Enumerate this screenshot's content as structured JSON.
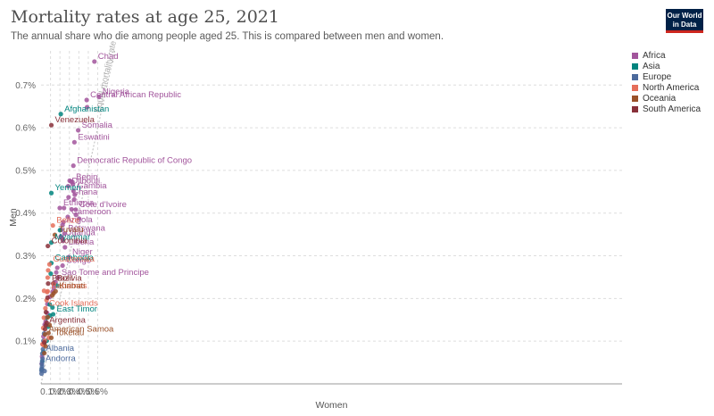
{
  "header": {
    "title": "Mortality rates at age 25, 2021",
    "subtitle": "The annual share who die among people aged 25. This is compared between men and women.",
    "logo_line1": "Our World",
    "logo_line2": "in Data"
  },
  "colors": {
    "Africa": "#a2559c",
    "Asia": "#00847e",
    "Europe": "#4c6a9c",
    "North America": "#e56e5a",
    "Oceania": "#9a5129",
    "South America": "#883039"
  },
  "chart_data": {
    "type": "scatter",
    "title": "Mortality rates at age 25, 2021",
    "xlabel": "Women",
    "ylabel": "Men",
    "xlim": [
      0,
      0.0615
    ],
    "ylim": [
      0,
      0.0078
    ],
    "x_ticks": [
      "0.1%",
      "0.2%",
      "0.3%",
      "0.4%",
      "0.5%",
      "0.6%"
    ],
    "y_ticks": [
      "0.1%",
      "0.2%",
      "0.3%",
      "0.4%",
      "0.5%",
      "0.6%",
      "0.7%"
    ],
    "x_tick_values": [
      0.001,
      0.002,
      0.003,
      0.004,
      0.005,
      0.006
    ],
    "y_tick_values": [
      0.001,
      0.002,
      0.003,
      0.004,
      0.005,
      0.006,
      0.007
    ],
    "grid": true,
    "legend_position": "right",
    "reference_line": {
      "label": "Equal mortality rate"
    },
    "legend": [
      "Africa",
      "Asia",
      "Europe",
      "North America",
      "Oceania",
      "South America"
    ],
    "points": [
      {
        "label": "Chad",
        "x": 0.00565,
        "y": 0.00755,
        "region": "Africa"
      },
      {
        "label": "Nigeria",
        "x": 0.00613,
        "y": 0.00672,
        "region": "Africa"
      },
      {
        "label": "Central African Republic",
        "x": 0.00483,
        "y": 0.00665,
        "region": "Africa"
      },
      {
        "label": "",
        "x": 0.00487,
        "y": 0.00648,
        "region": "Africa"
      },
      {
        "label": "Somalia",
        "x": 0.00393,
        "y": 0.00594,
        "region": "Africa"
      },
      {
        "label": "Eswatini",
        "x": 0.00353,
        "y": 0.00566,
        "region": "Africa"
      },
      {
        "label": "Democratic Republic of Congo",
        "x": 0.00342,
        "y": 0.00511,
        "region": "Africa"
      },
      {
        "label": "Djibouti",
        "x": 0.00287,
        "y": 0.00463,
        "region": "Africa"
      },
      {
        "label": "",
        "x": 0.00303,
        "y": 0.00476,
        "region": "Africa"
      },
      {
        "label": "",
        "x": 0.00318,
        "y": 0.00474,
        "region": "Africa"
      },
      {
        "label": "Benin",
        "x": 0.00332,
        "y": 0.00473,
        "region": "Africa"
      },
      {
        "label": "Ghana",
        "x": 0.00291,
        "y": 0.00437,
        "region": "Africa"
      },
      {
        "label": "",
        "x": 0.00337,
        "y": 0.00467,
        "region": "Africa"
      },
      {
        "label": "Gambia",
        "x": 0.00343,
        "y": 0.00452,
        "region": "Africa"
      },
      {
        "label": "",
        "x": 0.00351,
        "y": 0.00432,
        "region": "Africa"
      },
      {
        "label": "",
        "x": 0.00357,
        "y": 0.00443,
        "region": "Africa"
      },
      {
        "label": "Cote d'Ivoire",
        "x": 0.00367,
        "y": 0.00408,
        "region": "Africa"
      },
      {
        "label": "",
        "x": 0.00369,
        "y": 0.00396,
        "region": "Africa"
      },
      {
        "label": "",
        "x": 0.00403,
        "y": 0.00387,
        "region": "Africa"
      },
      {
        "label": "Cameroon",
        "x": 0.00283,
        "y": 0.00391,
        "region": "Africa"
      },
      {
        "label": "",
        "x": 0.00323,
        "y": 0.00409,
        "region": "Africa"
      },
      {
        "label": "Ethiopia",
        "x": 0.00198,
        "y": 0.00412,
        "region": "Africa"
      },
      {
        "label": "",
        "x": 0.00243,
        "y": 0.00412,
        "region": "Africa"
      },
      {
        "label": "Angola",
        "x": 0.00228,
        "y": 0.00372,
        "region": "Africa"
      },
      {
        "label": "",
        "x": 0.00237,
        "y": 0.00379,
        "region": "Africa"
      },
      {
        "label": "",
        "x": 0.00216,
        "y": 0.00361,
        "region": "Africa"
      },
      {
        "label": "Botswana",
        "x": 0.00248,
        "y": 0.00352,
        "region": "Africa"
      },
      {
        "label": "Uganda",
        "x": 0.00222,
        "y": 0.00342,
        "region": "Africa"
      },
      {
        "label": "",
        "x": 0.00208,
        "y": 0.00345,
        "region": "Africa"
      },
      {
        "label": "",
        "x": 0.00233,
        "y": 0.00335,
        "region": "Africa"
      },
      {
        "label": "Liberia",
        "x": 0.00253,
        "y": 0.0032,
        "region": "Africa"
      },
      {
        "label": "Niger",
        "x": 0.00293,
        "y": 0.00297,
        "region": "Africa"
      },
      {
        "label": "Congo",
        "x": 0.00228,
        "y": 0.00277,
        "region": "Africa"
      },
      {
        "label": "Sao Tome and Principe",
        "x": 0.00178,
        "y": 0.00249,
        "region": "Africa"
      },
      {
        "label": "",
        "x": 0.00172,
        "y": 0.00272,
        "region": "Africa"
      },
      {
        "label": "",
        "x": 0.00161,
        "y": 0.00261,
        "region": "Africa"
      },
      {
        "label": "",
        "x": 0.00153,
        "y": 0.00238,
        "region": "Africa"
      },
      {
        "label": "",
        "x": 0.00134,
        "y": 0.00225,
        "region": "Africa"
      },
      {
        "label": "",
        "x": 0.00122,
        "y": 0.00216,
        "region": "Africa"
      },
      {
        "label": "",
        "x": 0.00094,
        "y": 0.00204,
        "region": "Africa"
      },
      {
        "label": "",
        "x": 0.00067,
        "y": 0.00187,
        "region": "Africa"
      },
      {
        "label": "",
        "x": 0.00064,
        "y": 0.00166,
        "region": "Africa"
      },
      {
        "label": "",
        "x": 0.00049,
        "y": 0.00146,
        "region": "Africa"
      },
      {
        "label": "",
        "x": 0.00038,
        "y": 0.00139,
        "region": "Africa"
      },
      {
        "label": "",
        "x": 0.00025,
        "y": 0.00111,
        "region": "Africa"
      },
      {
        "label": "",
        "x": 0.00019,
        "y": 0.00092,
        "region": "Africa"
      },
      {
        "label": "",
        "x": 0.00011,
        "y": 0.00064,
        "region": "Africa"
      },
      {
        "label": "",
        "x": 7e-05,
        "y": 0.00047,
        "region": "Africa"
      },
      {
        "label": "Afghanistan",
        "x": 0.00209,
        "y": 0.00632,
        "region": "Asia"
      },
      {
        "label": "Yemen",
        "x": 0.00109,
        "y": 0.00447,
        "region": "Asia"
      },
      {
        "label": "Myanmar",
        "x": 0.00109,
        "y": 0.00331,
        "region": "Asia"
      },
      {
        "label": "Cambodia",
        "x": 0.00109,
        "y": 0.00283,
        "region": "Asia"
      },
      {
        "label": "",
        "x": 0.002,
        "y": 0.0036,
        "region": "Asia"
      },
      {
        "label": "",
        "x": 0.00171,
        "y": 0.0023,
        "region": "Asia"
      },
      {
        "label": "",
        "x": 0.00103,
        "y": 0.00258,
        "region": "Asia"
      },
      {
        "label": "East Timor",
        "x": 0.00128,
        "y": 0.00163,
        "region": "Asia"
      },
      {
        "label": "",
        "x": 0.00121,
        "y": 0.00179,
        "region": "Asia"
      },
      {
        "label": "",
        "x": 0.00092,
        "y": 0.00186,
        "region": "Asia"
      },
      {
        "label": "",
        "x": 0.00094,
        "y": 0.0016,
        "region": "Asia"
      },
      {
        "label": "",
        "x": 0.00058,
        "y": 0.00155,
        "region": "Asia"
      },
      {
        "label": "",
        "x": 0.00075,
        "y": 0.00134,
        "region": "Asia"
      },
      {
        "label": "",
        "x": 0.0006,
        "y": 0.00101,
        "region": "Asia"
      },
      {
        "label": "",
        "x": 0.00034,
        "y": 0.00095,
        "region": "Asia"
      },
      {
        "label": "",
        "x": 0.00025,
        "y": 0.00075,
        "region": "Asia"
      },
      {
        "label": "",
        "x": 0.00014,
        "y": 0.00053,
        "region": "Asia"
      },
      {
        "label": "",
        "x": 8e-05,
        "y": 0.00034,
        "region": "Asia"
      },
      {
        "label": "Albania",
        "x": 0.00013,
        "y": 0.00071,
        "region": "Europe"
      },
      {
        "label": "Andorra",
        "x": 9e-05,
        "y": 0.00047,
        "region": "Europe"
      },
      {
        "label": "",
        "x": 4e-05,
        "y": 0.00031,
        "region": "Europe"
      },
      {
        "label": "",
        "x": 7e-05,
        "y": 0.00036,
        "region": "Europe"
      },
      {
        "label": "",
        "x": 0.00011,
        "y": 0.00041,
        "region": "Europe"
      },
      {
        "label": "",
        "x": 0.00012,
        "y": 0.00053,
        "region": "Europe"
      },
      {
        "label": "",
        "x": 0.00016,
        "y": 0.00059,
        "region": "Europe"
      },
      {
        "label": "",
        "x": 0.0002,
        "y": 0.00081,
        "region": "Europe"
      },
      {
        "label": "",
        "x": 0.00025,
        "y": 0.00101,
        "region": "Europe"
      },
      {
        "label": "",
        "x": 0.00032,
        "y": 0.00118,
        "region": "Europe"
      },
      {
        "label": "",
        "x": 0.00038,
        "y": 0.0003,
        "region": "Europe"
      },
      {
        "label": "",
        "x": 5e-05,
        "y": 0.00024,
        "region": "Europe"
      },
      {
        "label": "Belize",
        "x": 0.00125,
        "y": 0.00371,
        "region": "North America"
      },
      {
        "label": "Guatemala",
        "x": 0.00089,
        "y": 0.0028,
        "region": "North America"
      },
      {
        "label": "Bahamas",
        "x": 0.0007,
        "y": 0.00217,
        "region": "North America"
      },
      {
        "label": "Cook Islands",
        "x": 0.00046,
        "y": 0.00177,
        "region": "North America"
      },
      {
        "label": "",
        "x": 0.00075,
        "y": 0.00266,
        "region": "North America"
      },
      {
        "label": "",
        "x": 0.0007,
        "y": 0.00249,
        "region": "North America"
      },
      {
        "label": "",
        "x": 0.00064,
        "y": 0.00215,
        "region": "North America"
      },
      {
        "label": "",
        "x": 0.00058,
        "y": 0.00196,
        "region": "North America"
      },
      {
        "label": "",
        "x": 0.00032,
        "y": 0.00218,
        "region": "North America"
      },
      {
        "label": "",
        "x": 0.0003,
        "y": 0.00155,
        "region": "North America"
      },
      {
        "label": "",
        "x": 0.00023,
        "y": 0.00131,
        "region": "North America"
      },
      {
        "label": "",
        "x": 0.00039,
        "y": 0.00101,
        "region": "North America"
      },
      {
        "label": "",
        "x": 0.00029,
        "y": 0.00091,
        "region": "North America"
      },
      {
        "label": "",
        "x": 0.00015,
        "y": 0.00093,
        "region": "North America"
      },
      {
        "label": "",
        "x": 0.00082,
        "y": 0.00108,
        "region": "North America"
      },
      {
        "label": "Tuvalu",
        "x": 0.00146,
        "y": 0.00349,
        "region": "Oceania"
      },
      {
        "label": "Kiribati",
        "x": 0.00154,
        "y": 0.00217,
        "region": "Oceania"
      },
      {
        "label": "Tokelau",
        "x": 0.00109,
        "y": 0.00108,
        "region": "Oceania"
      },
      {
        "label": "American Samoa",
        "x": 0.00042,
        "y": 0.00116,
        "region": "Oceania"
      },
      {
        "label": "",
        "x": 0.00079,
        "y": 0.00119,
        "region": "Oceania"
      },
      {
        "label": "",
        "x": 0.0009,
        "y": 0.00138,
        "region": "Oceania"
      },
      {
        "label": "",
        "x": 0.00133,
        "y": 0.00212,
        "region": "Oceania"
      },
      {
        "label": "",
        "x": 0.00118,
        "y": 0.00207,
        "region": "Oceania"
      },
      {
        "label": "",
        "x": 0.00071,
        "y": 0.00156,
        "region": "Oceania"
      },
      {
        "label": "",
        "x": 0.00049,
        "y": 0.00088,
        "region": "Oceania"
      },
      {
        "label": "",
        "x": 0.00035,
        "y": 0.00072,
        "region": "Oceania"
      },
      {
        "label": "Venezuela",
        "x": 0.00109,
        "y": 0.00606,
        "region": "South America"
      },
      {
        "label": "Colombia",
        "x": 0.00072,
        "y": 0.00323,
        "region": "South America"
      },
      {
        "label": "Brazil",
        "x": 0.00075,
        "y": 0.00235,
        "region": "South America"
      },
      {
        "label": "Bolivia",
        "x": 0.00129,
        "y": 0.00235,
        "region": "South America"
      },
      {
        "label": "Argentina",
        "x": 0.0005,
        "y": 0.00137,
        "region": "South America"
      },
      {
        "label": "",
        "x": 0.00042,
        "y": 0.00128,
        "region": "South America"
      },
      {
        "label": "",
        "x": 0.00069,
        "y": 0.00202,
        "region": "South America"
      },
      {
        "label": "",
        "x": 0.00052,
        "y": 0.00168,
        "region": "South America"
      },
      {
        "label": "",
        "x": 0.0006,
        "y": 0.00143,
        "region": "South America"
      },
      {
        "label": "",
        "x": 0.00034,
        "y": 0.00097,
        "region": "South America"
      }
    ]
  }
}
